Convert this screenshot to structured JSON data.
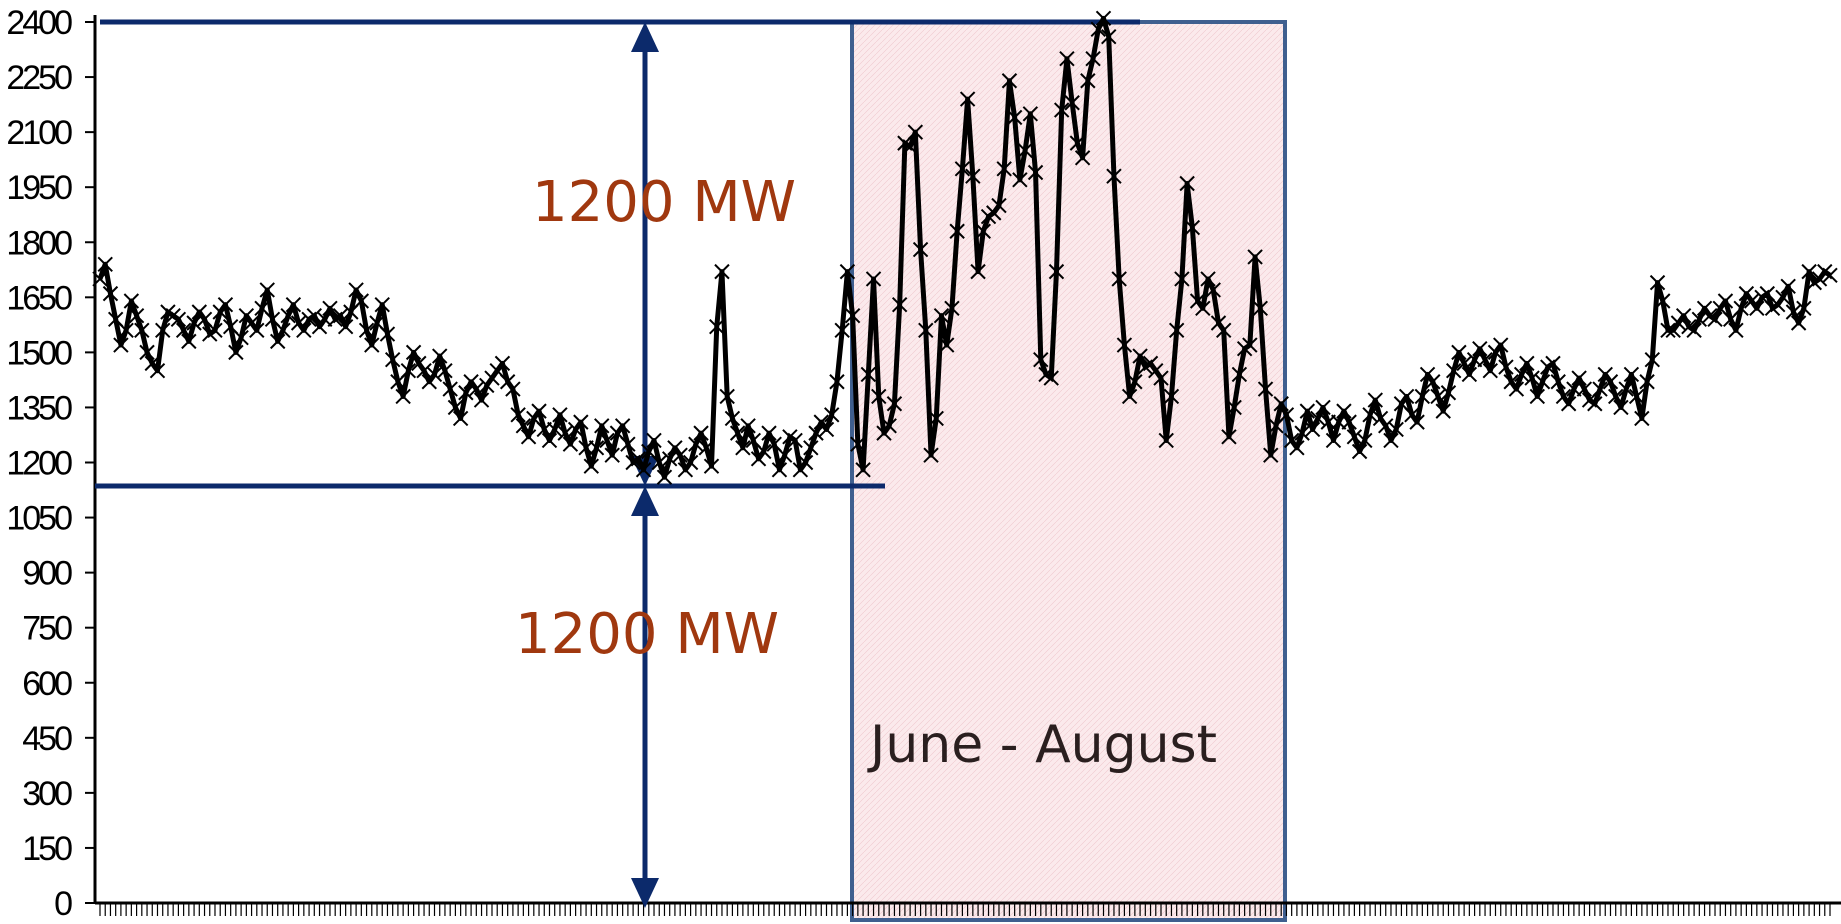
{
  "chart_data": {
    "type": "line",
    "title": "",
    "xlabel": "",
    "ylabel": "",
    "ylim": [
      0,
      2400
    ],
    "yticks": [
      "0",
      "150",
      "300",
      "450",
      "600",
      "750",
      "900",
      "1050",
      "1200",
      "1350",
      "1500",
      "1650",
      "1800",
      "1950",
      "2100",
      "2250",
      "2400"
    ],
    "xticks_labeled": false,
    "marker": "x",
    "series_color": "#000000",
    "series": [
      {
        "values": [
          1700,
          1740,
          1660,
          1590,
          1520,
          1560,
          1640,
          1600,
          1560,
          1500,
          1470,
          1450,
          1560,
          1610,
          1600,
          1590,
          1560,
          1530,
          1580,
          1610,
          1590,
          1550,
          1560,
          1610,
          1630,
          1570,
          1500,
          1540,
          1600,
          1580,
          1560,
          1620,
          1670,
          1590,
          1530,
          1560,
          1600,
          1630,
          1580,
          1560,
          1590,
          1600,
          1570,
          1590,
          1620,
          1590,
          1600,
          1570,
          1610,
          1670,
          1640,
          1560,
          1520,
          1580,
          1630,
          1550,
          1480,
          1420,
          1380,
          1450,
          1500,
          1470,
          1450,
          1420,
          1440,
          1490,
          1450,
          1400,
          1350,
          1320,
          1390,
          1420,
          1400,
          1370,
          1410,
          1430,
          1450,
          1470,
          1420,
          1400,
          1330,
          1300,
          1270,
          1320,
          1340,
          1290,
          1260,
          1290,
          1330,
          1280,
          1250,
          1290,
          1310,
          1240,
          1190,
          1240,
          1300,
          1260,
          1220,
          1280,
          1300,
          1250,
          1200,
          1210,
          1180,
          1230,
          1260,
          1200,
          1160,
          1210,
          1240,
          1220,
          1180,
          1200,
          1250,
          1280,
          1240,
          1190,
          1570,
          1720,
          1380,
          1320,
          1280,
          1240,
          1300,
          1260,
          1210,
          1230,
          1280,
          1250,
          1180,
          1220,
          1270,
          1260,
          1180,
          1200,
          1240,
          1280,
          1310,
          1290,
          1330,
          1420,
          1560,
          1720,
          1600,
          1250,
          1180,
          1440,
          1700,
          1380,
          1280,
          1300,
          1360,
          1630,
          2070,
          2060,
          2100,
          1780,
          1560,
          1220,
          1320,
          1600,
          1520,
          1620,
          1830,
          2000,
          2190,
          1980,
          1720,
          1830,
          1870,
          1880,
          1900,
          2000,
          2240,
          2140,
          1970,
          2050,
          2150,
          1990,
          1480,
          1440,
          1430,
          1720,
          2160,
          2300,
          2180,
          2070,
          2030,
          2240,
          2300,
          2380,
          2410,
          2360,
          1980,
          1700,
          1520,
          1380,
          1420,
          1490,
          1460,
          1470,
          1450,
          1430,
          1260,
          1380,
          1560,
          1700,
          1960,
          1840,
          1640,
          1620,
          1700,
          1670,
          1580,
          1560,
          1270,
          1350,
          1440,
          1510,
          1520,
          1760,
          1620,
          1400,
          1220,
          1300,
          1360,
          1330,
          1260,
          1240,
          1280,
          1340,
          1290,
          1320,
          1350,
          1310,
          1260,
          1310,
          1340,
          1310,
          1270,
          1230,
          1260,
          1330,
          1370,
          1320,
          1300,
          1260,
          1290,
          1360,
          1380,
          1330,
          1310,
          1380,
          1440,
          1420,
          1380,
          1340,
          1390,
          1450,
          1500,
          1470,
          1440,
          1480,
          1510,
          1480,
          1450,
          1500,
          1520,
          1460,
          1420,
          1400,
          1440,
          1470,
          1430,
          1380,
          1420,
          1460,
          1470,
          1420,
          1380,
          1360,
          1400,
          1430,
          1400,
          1370,
          1360,
          1400,
          1440,
          1420,
          1380,
          1350,
          1400,
          1440,
          1380,
          1320,
          1420,
          1480,
          1690,
          1640,
          1560,
          1560,
          1580,
          1600,
          1570,
          1560,
          1590,
          1620,
          1600,
          1590,
          1620,
          1640,
          1590,
          1560,
          1620,
          1660,
          1640,
          1620,
          1650,
          1660,
          1620,
          1630,
          1650,
          1680,
          1610,
          1580,
          1620,
          1720,
          1690,
          1700,
          1720,
          1710
        ]
      }
    ],
    "annotations": [
      {
        "text": "1200 MW",
        "color": "#a0380f",
        "between": [
          1150,
          2400
        ]
      },
      {
        "text": "1200 MW",
        "color": "#a0380f",
        "between": [
          0,
          1150
        ]
      },
      {
        "text": "June - August",
        "shaded_region": true
      }
    ],
    "reference_lines": [
      2400,
      1150
    ],
    "highlight": {
      "label": "June - August",
      "fill": "#f9e3e6",
      "border": "#3f5f8f"
    },
    "arrow_color": "#0c2a6b"
  }
}
